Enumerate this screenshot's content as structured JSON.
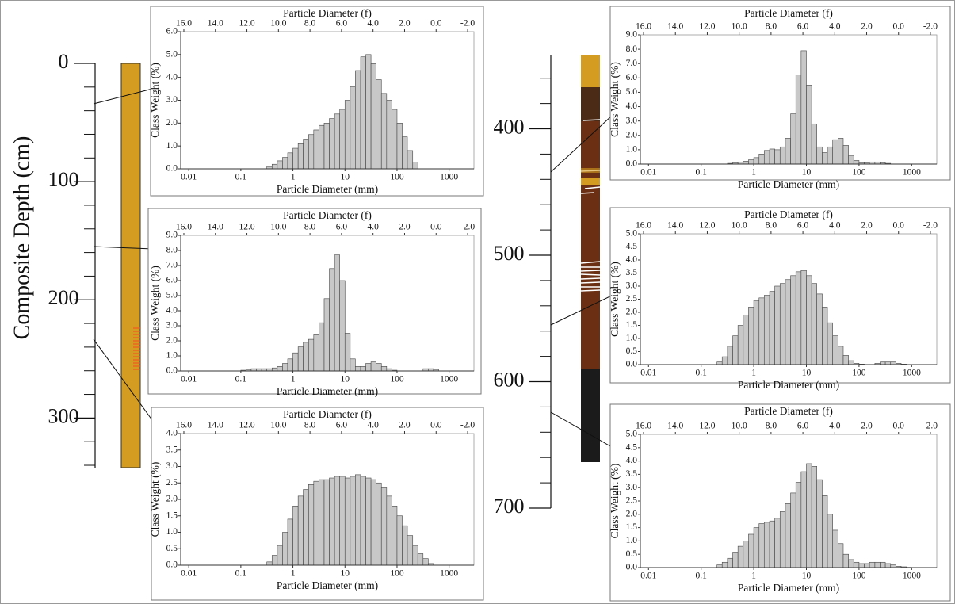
{
  "depth_scale": {
    "title": "Composite Depth (cm)",
    "axes": [
      {
        "ylim": [
          0,
          342
        ],
        "yticks": [
          0,
          100,
          200,
          300
        ]
      },
      {
        "ylim": [
          342,
          700
        ],
        "yticks": [
          400,
          500,
          600,
          700
        ]
      }
    ]
  },
  "chart_data": [
    {
      "type": "histogram",
      "x2label": "Particle Diameter (f)",
      "xlabel": "Particle Diameter (mm)",
      "ylabel": "Class Weight (%)",
      "log_x": true,
      "color": "#c8c8c8",
      "bins": [
        0.316,
        0.398,
        0.501,
        0.631,
        0.794,
        1,
        1.26,
        1.58,
        2,
        2.51,
        3.16,
        3.98,
        5.01,
        6.31,
        7.94,
        10,
        12.6,
        15.8,
        20,
        25.1,
        31.6,
        39.8,
        50.1,
        63.1,
        79.4,
        100,
        126,
        158,
        200,
        251
      ],
      "values": [
        0.1,
        0.2,
        0.35,
        0.5,
        0.7,
        0.9,
        1.1,
        1.3,
        1.5,
        1.7,
        1.9,
        2.0,
        2.2,
        2.4,
        2.6,
        3.0,
        3.6,
        4.3,
        4.9,
        5.0,
        4.6,
        3.9,
        3.3,
        3.0,
        2.6,
        2.0,
        1.4,
        0.8,
        0.3
      ],
      "xlim": [
        0.007,
        3000
      ],
      "xticks": [
        0.01,
        0.1,
        1,
        10,
        100,
        1000
      ],
      "x2lim": [
        16.2,
        -2.4
      ],
      "x2ticks": [
        {
          "value": 16,
          "label": "16.0"
        },
        {
          "value": 14,
          "label": "14.0"
        },
        {
          "value": 12,
          "label": "12.0"
        },
        {
          "value": 10,
          "label": "10.0"
        },
        {
          "value": 8,
          "label": "8.0"
        },
        {
          "value": 6,
          "label": "6.0"
        },
        {
          "value": 4,
          "label": "4.0"
        },
        {
          "value": 2,
          "label": "2.0"
        },
        {
          "value": 0,
          "label": "0.0"
        },
        {
          "value": -2,
          "label": "-2.0"
        }
      ],
      "ylim": [
        0,
        6
      ],
      "yticks": [
        {
          "value": 0,
          "label": "0.0"
        },
        {
          "value": 1,
          "label": "1.0"
        },
        {
          "value": 2,
          "label": "2.0"
        },
        {
          "value": 3,
          "label": "3.0"
        },
        {
          "value": 4,
          "label": "4.0"
        },
        {
          "value": 5,
          "label": "5.0"
        },
        {
          "value": 6,
          "label": "6.0"
        }
      ]
    },
    {
      "type": "histogram",
      "x2label": "Particle Diameter (f)",
      "xlabel": "Particle Diameter (mm)",
      "ylabel": "Class Weight (%)",
      "log_x": true,
      "color": "#c8c8c8",
      "bins": [
        0.1,
        0.126,
        0.158,
        0.2,
        0.251,
        0.316,
        0.398,
        0.501,
        0.631,
        0.794,
        1,
        1.26,
        1.58,
        2,
        2.51,
        3.16,
        3.98,
        5.01,
        6.31,
        7.94,
        10,
        12.6,
        15.8,
        20,
        25.1,
        31.6,
        39.8,
        50.1,
        63.1,
        79.4,
        100,
        126,
        158,
        200,
        251,
        316,
        398,
        501,
        631
      ],
      "values": [
        0.05,
        0.1,
        0.15,
        0.15,
        0.15,
        0.15,
        0.2,
        0.3,
        0.5,
        0.8,
        1.2,
        1.6,
        1.9,
        2.1,
        2.4,
        3.2,
        4.8,
        6.8,
        7.7,
        6.0,
        2.5,
        0.8,
        0.3,
        0.3,
        0.5,
        0.6,
        0.5,
        0.3,
        0.15,
        0.05,
        0,
        0,
        0,
        0,
        0,
        0.15,
        0.15,
        0.1
      ],
      "xlim": [
        0.007,
        3000
      ],
      "xticks": [
        0.01,
        0.1,
        1,
        10,
        100,
        1000
      ],
      "x2lim": [
        16.2,
        -2.4
      ],
      "x2ticks": [
        {
          "value": 16,
          "label": "16.0"
        },
        {
          "value": 14,
          "label": "14.0"
        },
        {
          "value": 12,
          "label": "12.0"
        },
        {
          "value": 10,
          "label": "10.0"
        },
        {
          "value": 8,
          "label": "8.0"
        },
        {
          "value": 6,
          "label": "6.0"
        },
        {
          "value": 4,
          "label": "4.0"
        },
        {
          "value": 2,
          "label": "2.0"
        },
        {
          "value": 0,
          "label": "0.0"
        },
        {
          "value": -2,
          "label": "-2.0"
        }
      ],
      "ylim": [
        0,
        9
      ],
      "yticks": [
        {
          "value": 0,
          "label": "0.0"
        },
        {
          "value": 1,
          "label": "1.0"
        },
        {
          "value": 2,
          "label": "2.0"
        },
        {
          "value": 3,
          "label": "3.0"
        },
        {
          "value": 4,
          "label": "4.0"
        },
        {
          "value": 5,
          "label": "5.0"
        },
        {
          "value": 6,
          "label": "6.0"
        },
        {
          "value": 7,
          "label": "7.0"
        },
        {
          "value": 8,
          "label": "8.0"
        },
        {
          "value": 9,
          "label": "9.0"
        }
      ]
    },
    {
      "type": "histogram",
      "x2label": "Particle Diameter (f)",
      "xlabel": "Particle Diameter (mm)",
      "ylabel": "Class Weight (%)",
      "log_x": true,
      "color": "#c8c8c8",
      "bins": [
        0.316,
        0.398,
        0.501,
        0.631,
        0.794,
        1,
        1.26,
        1.58,
        2,
        2.51,
        3.16,
        3.98,
        5.01,
        6.31,
        7.94,
        10,
        12.6,
        15.8,
        20,
        25.1,
        31.6,
        39.8,
        50.1,
        63.1,
        79.4,
        100,
        126,
        158,
        200,
        251,
        316,
        398,
        501
      ],
      "values": [
        0.1,
        0.3,
        0.6,
        1.0,
        1.4,
        1.8,
        2.1,
        2.3,
        2.45,
        2.55,
        2.6,
        2.6,
        2.65,
        2.7,
        2.7,
        2.65,
        2.7,
        2.75,
        2.7,
        2.65,
        2.6,
        2.5,
        2.35,
        2.1,
        1.8,
        1.5,
        1.2,
        0.9,
        0.6,
        0.35,
        0.2,
        0.05
      ],
      "xlim": [
        0.007,
        3000
      ],
      "xticks": [
        0.01,
        0.1,
        1,
        10,
        100,
        1000
      ],
      "x2lim": [
        16.2,
        -2.4
      ],
      "x2ticks": [
        {
          "value": 16,
          "label": "16.0"
        },
        {
          "value": 14,
          "label": "14.0"
        },
        {
          "value": 12,
          "label": "12.0"
        },
        {
          "value": 10,
          "label": "10.0"
        },
        {
          "value": 8,
          "label": "8.0"
        },
        {
          "value": 6,
          "label": "6.0"
        },
        {
          "value": 4,
          "label": "4.0"
        },
        {
          "value": 2,
          "label": "2.0"
        },
        {
          "value": 0,
          "label": "0.0"
        },
        {
          "value": -2,
          "label": "-2.0"
        }
      ],
      "ylim": [
        0,
        4
      ],
      "yticks": [
        {
          "value": 0,
          "label": "0.0"
        },
        {
          "value": 0.5,
          "label": "0.5"
        },
        {
          "value": 1,
          "label": "1.0"
        },
        {
          "value": 1.5,
          "label": "1.5"
        },
        {
          "value": 2,
          "label": "2.0"
        },
        {
          "value": 2.5,
          "label": "2.5"
        },
        {
          "value": 3,
          "label": "3.0"
        },
        {
          "value": 3.5,
          "label": "3.5"
        },
        {
          "value": 4,
          "label": "4.0"
        }
      ]
    },
    {
      "type": "histogram",
      "x2label": "Particle Diameter (f)",
      "xlabel": "Particle Diameter (mm)",
      "ylabel": "Class Weight (%)",
      "log_x": true,
      "color": "#c8c8c8",
      "bins": [
        0.316,
        0.398,
        0.501,
        0.631,
        0.794,
        1,
        1.26,
        1.58,
        2,
        2.51,
        3.16,
        3.98,
        5.01,
        6.31,
        7.94,
        10,
        12.6,
        15.8,
        20,
        25.1,
        31.6,
        39.8,
        50.1,
        63.1,
        79.4,
        100,
        126,
        158,
        200,
        251,
        316,
        398
      ],
      "values": [
        0.05,
        0.1,
        0.15,
        0.2,
        0.3,
        0.45,
        0.7,
        0.95,
        1.05,
        1.0,
        1.2,
        1.8,
        3.5,
        6.2,
        7.9,
        5.5,
        2.8,
        1.2,
        0.8,
        1.2,
        1.7,
        1.8,
        1.3,
        0.6,
        0.25,
        0.1,
        0.1,
        0.15,
        0.15,
        0.1,
        0.05
      ],
      "xlim": [
        0.007,
        3000
      ],
      "xticks": [
        0.01,
        0.1,
        1,
        10,
        100,
        1000
      ],
      "x2lim": [
        16.2,
        -2.4
      ],
      "x2ticks": [
        {
          "value": 16,
          "label": "16.0"
        },
        {
          "value": 14,
          "label": "14.0"
        },
        {
          "value": 12,
          "label": "12.0"
        },
        {
          "value": 10,
          "label": "10.0"
        },
        {
          "value": 8,
          "label": "8.0"
        },
        {
          "value": 6,
          "label": "6.0"
        },
        {
          "value": 4,
          "label": "4.0"
        },
        {
          "value": 2,
          "label": "2.0"
        },
        {
          "value": 0,
          "label": "0.0"
        },
        {
          "value": -2,
          "label": "-2.0"
        }
      ],
      "ylim": [
        0,
        9
      ],
      "yticks": [
        {
          "value": 0,
          "label": "0.0"
        },
        {
          "value": 1,
          "label": "1.0"
        },
        {
          "value": 2,
          "label": "2.0"
        },
        {
          "value": 3,
          "label": "3.0"
        },
        {
          "value": 4,
          "label": "4.0"
        },
        {
          "value": 5,
          "label": "5.0"
        },
        {
          "value": 6,
          "label": "6.0"
        },
        {
          "value": 7,
          "label": "7.0"
        },
        {
          "value": 8,
          "label": "8.0"
        },
        {
          "value": 9,
          "label": "9.0"
        }
      ]
    },
    {
      "type": "histogram",
      "x2label": "Particle Diameter (f)",
      "xlabel": "Particle Diameter (mm)",
      "ylabel": "Class Weight (%)",
      "log_x": true,
      "color": "#c8c8c8",
      "bins": [
        0.2,
        0.251,
        0.316,
        0.398,
        0.501,
        0.631,
        0.794,
        1,
        1.26,
        1.58,
        2,
        2.51,
        3.16,
        3.98,
        5.01,
        6.31,
        7.94,
        10,
        12.6,
        15.8,
        20,
        25.1,
        31.6,
        39.8,
        50.1,
        63.1,
        79.4,
        100,
        126,
        158,
        200,
        251,
        316,
        398,
        501,
        631,
        794
      ],
      "values": [
        0.1,
        0.3,
        0.7,
        1.1,
        1.5,
        1.9,
        2.2,
        2.45,
        2.55,
        2.65,
        2.8,
        3.0,
        3.1,
        3.25,
        3.4,
        3.55,
        3.6,
        3.4,
        3.1,
        2.7,
        2.2,
        1.6,
        1.1,
        0.7,
        0.35,
        0.15,
        0.05,
        0.02,
        0,
        0,
        0.05,
        0.1,
        0.1,
        0.1,
        0.05,
        0.02
      ],
      "xlim": [
        0.007,
        3000
      ],
      "xticks": [
        0.01,
        0.1,
        1,
        10,
        100,
        1000
      ],
      "x2lim": [
        16.2,
        -2.4
      ],
      "x2ticks": [
        {
          "value": 16,
          "label": "16.0"
        },
        {
          "value": 14,
          "label": "14.0"
        },
        {
          "value": 12,
          "label": "12.0"
        },
        {
          "value": 10,
          "label": "10.0"
        },
        {
          "value": 8,
          "label": "8.0"
        },
        {
          "value": 6,
          "label": "6.0"
        },
        {
          "value": 4,
          "label": "4.0"
        },
        {
          "value": 2,
          "label": "2.0"
        },
        {
          "value": 0,
          "label": "0.0"
        },
        {
          "value": -2,
          "label": "-2.0"
        }
      ],
      "ylim": [
        0,
        5
      ],
      "yticks": [
        {
          "value": 0,
          "label": "0.0"
        },
        {
          "value": 0.5,
          "label": "0.5"
        },
        {
          "value": 1,
          "label": "1.0"
        },
        {
          "value": 1.5,
          "label": "1.5"
        },
        {
          "value": 2,
          "label": "2.0"
        },
        {
          "value": 2.5,
          "label": "2.5"
        },
        {
          "value": 3,
          "label": "3.0"
        },
        {
          "value": 3.5,
          "label": "3.5"
        },
        {
          "value": 4,
          "label": "4.0"
        },
        {
          "value": 4.5,
          "label": "4.5"
        },
        {
          "value": 5,
          "label": "5.0"
        }
      ]
    },
    {
      "type": "histogram",
      "x2label": "Particle Diameter (f)",
      "xlabel": "Particle Diameter (mm)",
      "ylabel": "Class Weight (%)",
      "log_x": true,
      "color": "#c8c8c8",
      "bins": [
        0.2,
        0.251,
        0.316,
        0.398,
        0.501,
        0.631,
        0.794,
        1,
        1.26,
        1.58,
        2,
        2.51,
        3.16,
        3.98,
        5.01,
        6.31,
        7.94,
        10,
        12.6,
        15.8,
        20,
        25.1,
        31.6,
        39.8,
        50.1,
        63.1,
        79.4,
        100,
        126,
        158,
        200,
        251,
        316,
        398,
        501,
        631,
        794,
        1000
      ],
      "values": [
        0.1,
        0.2,
        0.35,
        0.55,
        0.8,
        1.0,
        1.25,
        1.5,
        1.65,
        1.7,
        1.75,
        1.85,
        2.1,
        2.4,
        2.8,
        3.2,
        3.6,
        3.9,
        3.8,
        3.3,
        2.7,
        2.0,
        1.4,
        0.9,
        0.5,
        0.3,
        0.2,
        0.15,
        0.15,
        0.2,
        0.2,
        0.2,
        0.15,
        0.1,
        0.05,
        0.03,
        0.01
      ],
      "xlim": [
        0.007,
        3000
      ],
      "xticks": [
        0.01,
        0.1,
        1,
        10,
        100,
        1000
      ],
      "x2lim": [
        16.2,
        -2.4
      ],
      "x2ticks": [
        {
          "value": 16,
          "label": "16.0"
        },
        {
          "value": 14,
          "label": "14.0"
        },
        {
          "value": 12,
          "label": "12.0"
        },
        {
          "value": 10,
          "label": "10.0"
        },
        {
          "value": 8,
          "label": "8.0"
        },
        {
          "value": 6,
          "label": "6.0"
        },
        {
          "value": 4,
          "label": "4.0"
        },
        {
          "value": 2,
          "label": "2.0"
        },
        {
          "value": 0,
          "label": "0.0"
        },
        {
          "value": -2,
          "label": "-2.0"
        }
      ],
      "ylim": [
        0,
        5
      ],
      "yticks": [
        {
          "value": 0,
          "label": "0.0"
        },
        {
          "value": 0.5,
          "label": "0.5"
        },
        {
          "value": 1,
          "label": "1.0"
        },
        {
          "value": 1.5,
          "label": "1.5"
        },
        {
          "value": 2,
          "label": "2.0"
        },
        {
          "value": 2.5,
          "label": "2.5"
        },
        {
          "value": 3,
          "label": "3.0"
        },
        {
          "value": 3.5,
          "label": "3.5"
        },
        {
          "value": 4,
          "label": "4.0"
        },
        {
          "value": 4.5,
          "label": "4.5"
        },
        {
          "value": 5,
          "label": "5.0"
        }
      ]
    }
  ]
}
